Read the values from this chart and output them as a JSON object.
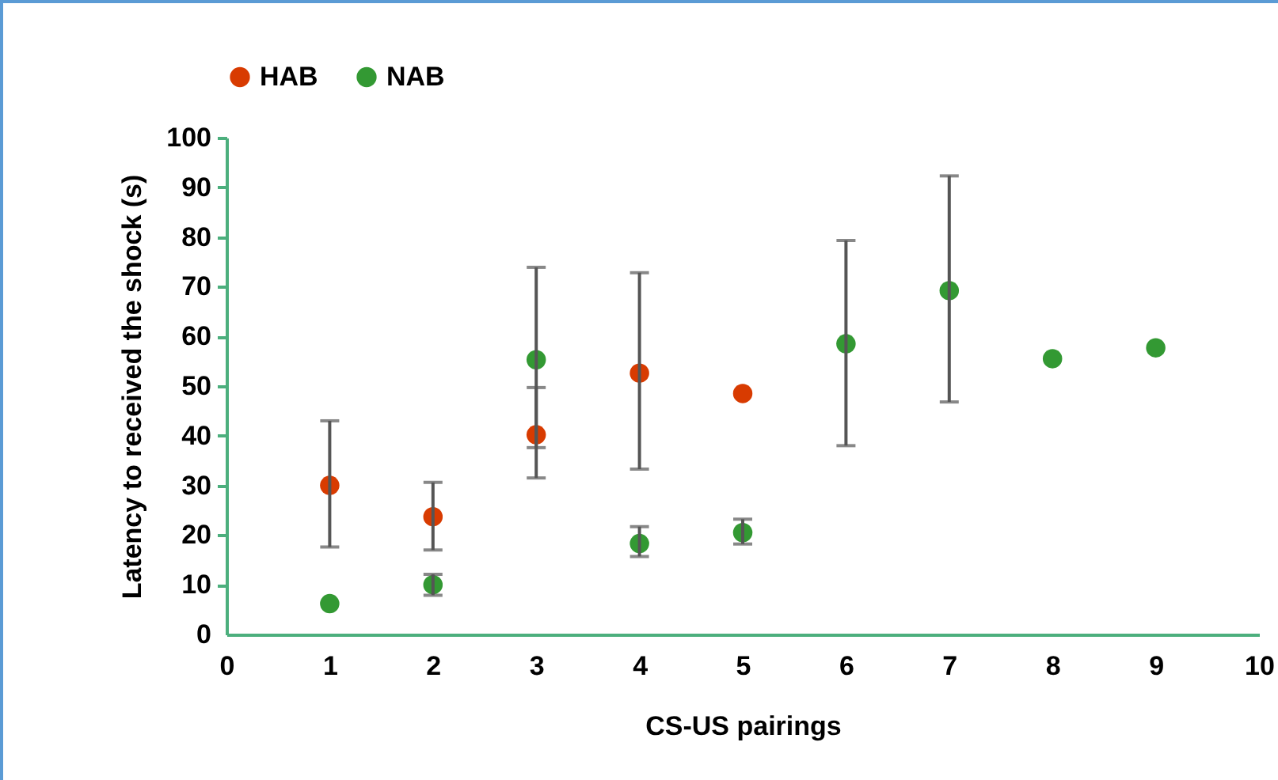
{
  "chart_data": {
    "type": "scatter",
    "xlabel": "CS-US pairings",
    "ylabel": "Latency  to received the shock (s)",
    "xlim": [
      0,
      10
    ],
    "xticks": [
      0,
      1,
      2,
      3,
      4,
      5,
      6,
      7,
      8,
      9,
      10
    ],
    "ylim": [
      0,
      100
    ],
    "yticks": [
      0,
      10,
      20,
      30,
      40,
      50,
      60,
      70,
      80,
      90,
      100
    ],
    "grid": false,
    "legend": "top",
    "marker": "circle",
    "series": [
      {
        "name": "HAB",
        "color": "#d83b01",
        "x": [
          1,
          2,
          3,
          4,
          5
        ],
        "values": [
          30,
          23.7,
          40.2,
          52.6,
          48.5
        ],
        "errors": [
          [
            17.6,
            43
          ],
          [
            17,
            30.6
          ],
          [
            31.5,
            49.7
          ],
          [
            33.3,
            72.8
          ],
          null
        ]
      },
      {
        "name": "NAB",
        "color": "#339933",
        "x": [
          1,
          2,
          3,
          4,
          5,
          6,
          7,
          8,
          9
        ],
        "values": [
          6.2,
          10,
          55.3,
          18.3,
          20.5,
          58.5,
          69.2,
          55.5,
          57.7
        ],
        "errors": [
          null,
          [
            7.9,
            12.1
          ],
          [
            37.6,
            73.9
          ],
          [
            15.7,
            21.7
          ],
          [
            18.2,
            23.2
          ],
          [
            38,
            79.3
          ],
          [
            46.8,
            92.3
          ],
          null,
          null
        ]
      }
    ]
  }
}
